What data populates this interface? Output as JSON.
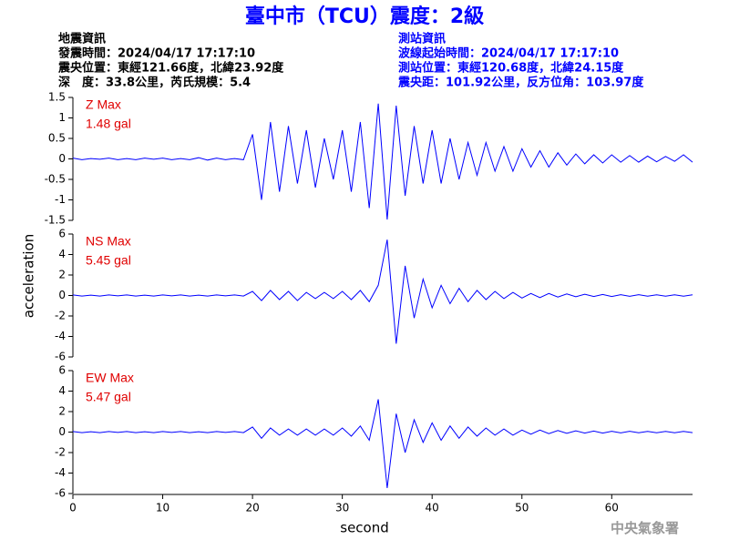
{
  "title": "臺中市（TCU）震度：2級",
  "quake_info": [
    "地震資訊",
    "發震時間：2024/04/17 17:17:10",
    "震央位置：東經121.66度，北緯23.92度",
    "深　度：33.8公里，芮氏規模：5.4"
  ],
  "station_info": [
    "測站資訊",
    "波線起始時間：2024/04/17 17:17:10",
    "測站位置：東經120.68度，北緯24.15度",
    "震央距：101.92公里，反方位角：103.97度"
  ],
  "x_label": "second",
  "y_label": "acceleration",
  "footer": "中央氣象署",
  "chart_data": [
    {
      "type": "line",
      "annotations": [
        "Z Max",
        "1.48 gal"
      ],
      "color": "#0000ff",
      "x": [
        0,
        1,
        2,
        3,
        4,
        5,
        6,
        7,
        8,
        9,
        10,
        11,
        12,
        13,
        14,
        15,
        16,
        17,
        18,
        19,
        20,
        21,
        22,
        23,
        24,
        25,
        26,
        27,
        28,
        29,
        30,
        31,
        32,
        33,
        34,
        35,
        36,
        37,
        38,
        39,
        40,
        41,
        42,
        43,
        44,
        45,
        46,
        47,
        48,
        49,
        50,
        51,
        52,
        53,
        54,
        55,
        56,
        57,
        58,
        59,
        60,
        61,
        62,
        63,
        64,
        65,
        66,
        67,
        68,
        69
      ],
      "values": [
        0.02,
        -0.02,
        0.01,
        -0.01,
        0.02,
        -0.02,
        0.01,
        -0.02,
        0.02,
        -0.01,
        0.02,
        -0.02,
        0.01,
        -0.02,
        0.03,
        -0.03,
        0.02,
        -0.02,
        0.01,
        -0.02,
        0.6,
        -1.0,
        0.9,
        -0.8,
        0.8,
        -0.6,
        0.7,
        -0.7,
        0.5,
        -0.5,
        0.7,
        -0.8,
        0.9,
        -1.2,
        1.35,
        -1.48,
        1.3,
        -0.9,
        0.8,
        -0.6,
        0.7,
        -0.6,
        0.5,
        -0.5,
        0.4,
        -0.4,
        0.4,
        -0.3,
        0.3,
        -0.3,
        0.25,
        -0.2,
        0.2,
        -0.2,
        0.15,
        -0.15,
        0.12,
        -0.12,
        0.1,
        -0.1,
        0.1,
        -0.08,
        0.08,
        -0.08,
        0.07,
        -0.07,
        0.06,
        -0.06,
        0.1,
        -0.08
      ],
      "xlim": [
        0,
        69
      ],
      "ylim": [
        -1.5,
        1.5
      ],
      "yticks": [
        -1.5,
        -1,
        -0.5,
        0,
        0.5,
        1,
        1.5
      ]
    },
    {
      "type": "line",
      "annotations": [
        "NS Max",
        "5.45 gal"
      ],
      "color": "#0000ff",
      "x": [
        0,
        1,
        2,
        3,
        4,
        5,
        6,
        7,
        8,
        9,
        10,
        11,
        12,
        13,
        14,
        15,
        16,
        17,
        18,
        19,
        20,
        21,
        22,
        23,
        24,
        25,
        26,
        27,
        28,
        29,
        30,
        31,
        32,
        33,
        34,
        35,
        36,
        37,
        38,
        39,
        40,
        41,
        42,
        43,
        44,
        45,
        46,
        47,
        48,
        49,
        50,
        51,
        52,
        53,
        54,
        55,
        56,
        57,
        58,
        59,
        60,
        61,
        62,
        63,
        64,
        65,
        66,
        67,
        68,
        69
      ],
      "values": [
        0.05,
        -0.05,
        0.04,
        -0.05,
        0.05,
        -0.04,
        0.05,
        -0.05,
        0.04,
        -0.05,
        0.05,
        -0.04,
        0.05,
        -0.05,
        0.04,
        -0.05,
        0.05,
        -0.04,
        0.05,
        -0.05,
        0.4,
        -0.5,
        0.5,
        -0.4,
        0.4,
        -0.5,
        0.3,
        -0.3,
        0.3,
        -0.3,
        0.4,
        -0.4,
        0.5,
        -0.6,
        1.0,
        5.45,
        -4.7,
        2.9,
        -2.2,
        1.6,
        -1.2,
        1.0,
        -0.8,
        0.7,
        -0.6,
        0.5,
        -0.4,
        0.4,
        -0.3,
        0.3,
        -0.25,
        0.2,
        -0.2,
        0.2,
        -0.15,
        0.15,
        -0.12,
        0.12,
        -0.1,
        0.1,
        -0.1,
        0.08,
        -0.08,
        0.08,
        -0.07,
        0.07,
        -0.06,
        0.06,
        -0.06,
        0.06
      ],
      "xlim": [
        0,
        69
      ],
      "ylim": [
        -6,
        6
      ],
      "yticks": [
        -6,
        -4,
        -2,
        0,
        2,
        4,
        6
      ]
    },
    {
      "type": "line",
      "annotations": [
        "EW Max",
        "5.47 gal"
      ],
      "color": "#0000ff",
      "x": [
        0,
        1,
        2,
        3,
        4,
        5,
        6,
        7,
        8,
        9,
        10,
        11,
        12,
        13,
        14,
        15,
        16,
        17,
        18,
        19,
        20,
        21,
        22,
        23,
        24,
        25,
        26,
        27,
        28,
        29,
        30,
        31,
        32,
        33,
        34,
        35,
        36,
        37,
        38,
        39,
        40,
        41,
        42,
        43,
        44,
        45,
        46,
        47,
        48,
        49,
        50,
        51,
        52,
        53,
        54,
        55,
        56,
        57,
        58,
        59,
        60,
        61,
        62,
        63,
        64,
        65,
        66,
        67,
        68,
        69
      ],
      "values": [
        0.05,
        -0.05,
        0.04,
        -0.05,
        0.05,
        -0.04,
        0.05,
        -0.05,
        0.04,
        -0.05,
        0.05,
        -0.04,
        0.05,
        -0.05,
        0.04,
        -0.05,
        0.05,
        -0.04,
        0.05,
        -0.05,
        0.5,
        -0.6,
        0.4,
        -0.3,
        0.3,
        -0.3,
        0.3,
        -0.3,
        0.3,
        -0.3,
        0.4,
        -0.4,
        0.6,
        -0.8,
        3.2,
        -5.47,
        1.8,
        -2.0,
        1.2,
        -1.0,
        0.9,
        -0.8,
        0.6,
        -0.6,
        0.5,
        -0.4,
        0.4,
        -0.3,
        0.3,
        -0.3,
        0.2,
        -0.2,
        0.2,
        -0.15,
        0.15,
        -0.12,
        0.12,
        -0.1,
        0.1,
        -0.1,
        0.08,
        -0.08,
        0.08,
        -0.07,
        0.07,
        -0.06,
        0.06,
        -0.06,
        0.06,
        -0.05
      ],
      "xlim": [
        0,
        69
      ],
      "ylim": [
        -6,
        6
      ],
      "yticks": [
        -6,
        -4,
        -2,
        0,
        2,
        4,
        6
      ],
      "xticks": [
        0,
        10,
        20,
        30,
        40,
        50,
        60
      ]
    }
  ]
}
